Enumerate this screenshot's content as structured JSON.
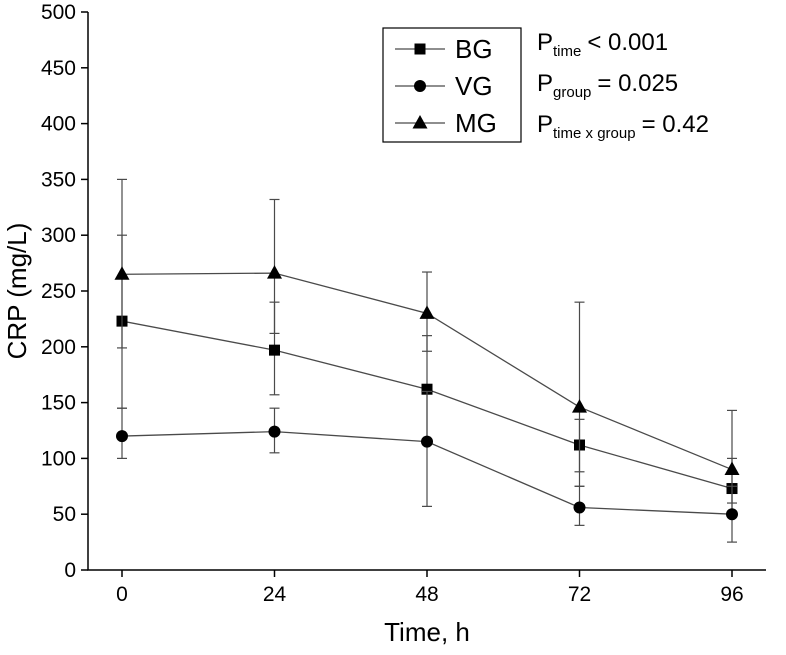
{
  "chart_data": {
    "type": "line",
    "x": [
      0,
      24,
      48,
      72,
      96
    ],
    "xlabel": "Time, h",
    "ylabel": "CRP (mg/L)",
    "ylim": [
      0,
      500
    ],
    "ytick_step": 50,
    "xticks": [
      "0",
      "24",
      "48",
      "72",
      "96"
    ],
    "grid": false,
    "legend_position": "top-center-inside",
    "colors": {
      "marker": "#000000",
      "line": "#4a4a4a",
      "axis": "#000000",
      "background": "#ffffff"
    },
    "series": [
      {
        "name": "BG",
        "marker": "square",
        "values": [
          223,
          197,
          162,
          112,
          73
        ],
        "err_up": [
          77,
          43,
          48,
          23,
          27
        ],
        "err_down": [
          78,
          40,
          47,
          24,
          25
        ]
      },
      {
        "name": "VG",
        "marker": "circle",
        "values": [
          120,
          124,
          115,
          56,
          50
        ],
        "err_up": [
          25,
          21,
          45,
          19,
          25
        ],
        "err_down": [
          20,
          19,
          58,
          16,
          25
        ]
      },
      {
        "name": "MG",
        "marker": "triangle",
        "values": [
          265,
          266,
          230,
          146,
          90
        ],
        "err_up": [
          85,
          66,
          37,
          94,
          53
        ],
        "err_down": [
          66,
          54,
          34,
          71,
          30
        ]
      }
    ],
    "annotations": [
      {
        "p": "P",
        "sub": "time",
        "rest": "< 0.001"
      },
      {
        "p": "P",
        "sub": "group",
        "rest": "= 0.025"
      },
      {
        "p": "P",
        "sub": "time x group",
        "rest": "= 0.42"
      }
    ]
  }
}
